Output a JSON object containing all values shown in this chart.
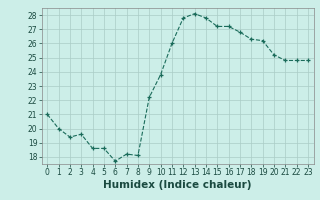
{
  "x": [
    0,
    1,
    2,
    3,
    4,
    5,
    6,
    7,
    8,
    9,
    10,
    11,
    12,
    13,
    14,
    15,
    16,
    17,
    18,
    19,
    20,
    21,
    22,
    23
  ],
  "y": [
    21.0,
    20.0,
    19.4,
    19.6,
    18.6,
    18.6,
    17.7,
    18.2,
    18.1,
    22.2,
    23.8,
    26.0,
    27.8,
    28.1,
    27.8,
    27.2,
    27.2,
    26.8,
    26.3,
    26.2,
    25.2,
    24.8,
    24.8,
    24.8
  ],
  "xlabel": "Humidex (Indice chaleur)",
  "ylim": [
    17.5,
    28.5
  ],
  "xlim": [
    -0.5,
    23.5
  ],
  "yticks": [
    18,
    19,
    20,
    21,
    22,
    23,
    24,
    25,
    26,
    27,
    28
  ],
  "xticks": [
    0,
    1,
    2,
    3,
    4,
    5,
    6,
    7,
    8,
    9,
    10,
    11,
    12,
    13,
    14,
    15,
    16,
    17,
    18,
    19,
    20,
    21,
    22,
    23
  ],
  "line_color": "#1a6b5a",
  "marker_color": "#1a6b5a",
  "bg_color": "#cceee8",
  "grid_color": "#aaccc6",
  "tick_label_fontsize": 5.5,
  "xlabel_fontsize": 7.5
}
